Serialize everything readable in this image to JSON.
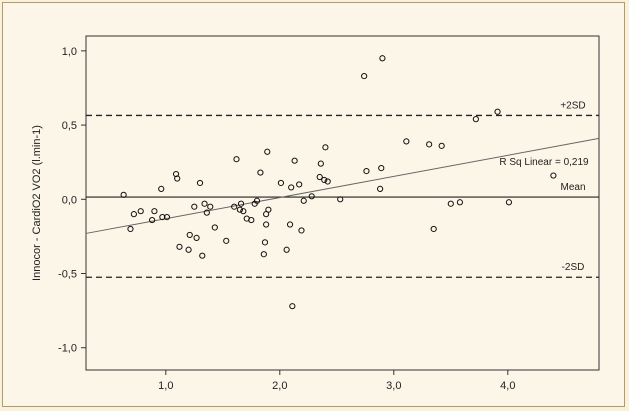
{
  "chart_data": {
    "type": "scatter",
    "title": "",
    "xlabel": "",
    "ylabel": "Innocor - CardiO2 VO2 (l.min-1)",
    "xlim": [
      0.3,
      4.8
    ],
    "ylim": [
      -1.15,
      1.1
    ],
    "x_ticks": [
      {
        "value": 1.0,
        "label": "1,0"
      },
      {
        "value": 2.0,
        "label": "2,0"
      },
      {
        "value": 3.0,
        "label": "3,0"
      },
      {
        "value": 4.0,
        "label": "4,0"
      }
    ],
    "y_ticks": [
      {
        "value": 1.0,
        "label": "1,0"
      },
      {
        "value": 0.5,
        "label": "0,5"
      },
      {
        "value": 0.0,
        "label": "0,0"
      },
      {
        "value": -0.5,
        "label": "-0,5"
      },
      {
        "value": -1.0,
        "label": "-1,0"
      }
    ],
    "reference_lines": [
      {
        "name": "+2SD",
        "value": 0.565,
        "style": "dashed"
      },
      {
        "name": "Mean",
        "value": 0.015,
        "style": "solid"
      },
      {
        "name": "-2SD",
        "value": -0.525,
        "style": "dashed"
      }
    ],
    "fit_line": {
      "label": "R Sq Linear = 0,219",
      "x": [
        0.3,
        4.8
      ],
      "y": [
        -0.23,
        0.41
      ]
    },
    "points": [
      {
        "x": 0.63,
        "y": 0.03
      },
      {
        "x": 0.69,
        "y": -0.2
      },
      {
        "x": 0.72,
        "y": -0.1
      },
      {
        "x": 0.78,
        "y": -0.08
      },
      {
        "x": 0.88,
        "y": -0.14
      },
      {
        "x": 0.9,
        "y": -0.08
      },
      {
        "x": 0.96,
        "y": 0.07
      },
      {
        "x": 0.97,
        "y": -0.12
      },
      {
        "x": 1.01,
        "y": -0.12
      },
      {
        "x": 1.09,
        "y": 0.17
      },
      {
        "x": 1.1,
        "y": 0.14
      },
      {
        "x": 1.12,
        "y": -0.32
      },
      {
        "x": 1.2,
        "y": -0.34
      },
      {
        "x": 1.21,
        "y": -0.24
      },
      {
        "x": 1.25,
        "y": -0.05
      },
      {
        "x": 1.27,
        "y": -0.26
      },
      {
        "x": 1.3,
        "y": 0.11
      },
      {
        "x": 1.32,
        "y": -0.38
      },
      {
        "x": 1.34,
        "y": -0.03
      },
      {
        "x": 1.36,
        "y": -0.09
      },
      {
        "x": 1.39,
        "y": -0.05
      },
      {
        "x": 1.43,
        "y": -0.19
      },
      {
        "x": 1.53,
        "y": -0.28
      },
      {
        "x": 1.6,
        "y": -0.05
      },
      {
        "x": 1.62,
        "y": 0.27
      },
      {
        "x": 1.65,
        "y": -0.07
      },
      {
        "x": 1.66,
        "y": -0.03
      },
      {
        "x": 1.68,
        "y": -0.08
      },
      {
        "x": 1.71,
        "y": -0.13
      },
      {
        "x": 1.75,
        "y": -0.14
      },
      {
        "x": 1.78,
        "y": -0.03
      },
      {
        "x": 1.8,
        "y": -0.01
      },
      {
        "x": 1.83,
        "y": 0.18
      },
      {
        "x": 1.86,
        "y": -0.37
      },
      {
        "x": 1.87,
        "y": -0.29
      },
      {
        "x": 1.88,
        "y": -0.17
      },
      {
        "x": 1.88,
        "y": -0.1
      },
      {
        "x": 1.89,
        "y": 0.32
      },
      {
        "x": 1.9,
        "y": -0.07
      },
      {
        "x": 2.01,
        "y": 0.11
      },
      {
        "x": 2.06,
        "y": -0.34
      },
      {
        "x": 2.09,
        "y": -0.17
      },
      {
        "x": 2.1,
        "y": 0.08
      },
      {
        "x": 2.11,
        "y": -0.72
      },
      {
        "x": 2.13,
        "y": 0.26
      },
      {
        "x": 2.17,
        "y": 0.1
      },
      {
        "x": 2.19,
        "y": -0.21
      },
      {
        "x": 2.21,
        "y": -0.01
      },
      {
        "x": 2.28,
        "y": 0.02
      },
      {
        "x": 2.35,
        "y": 0.15
      },
      {
        "x": 2.36,
        "y": 0.24
      },
      {
        "x": 2.39,
        "y": 0.13
      },
      {
        "x": 2.4,
        "y": 0.35
      },
      {
        "x": 2.42,
        "y": 0.12
      },
      {
        "x": 2.53,
        "y": 0.0
      },
      {
        "x": 2.74,
        "y": 0.83
      },
      {
        "x": 2.76,
        "y": 0.19
      },
      {
        "x": 2.88,
        "y": 0.07
      },
      {
        "x": 2.89,
        "y": 0.21
      },
      {
        "x": 2.9,
        "y": 0.95
      },
      {
        "x": 3.11,
        "y": 0.39
      },
      {
        "x": 3.31,
        "y": 0.37
      },
      {
        "x": 3.35,
        "y": -0.2
      },
      {
        "x": 3.42,
        "y": 0.36
      },
      {
        "x": 3.5,
        "y": -0.03
      },
      {
        "x": 3.58,
        "y": -0.02
      },
      {
        "x": 3.72,
        "y": 0.54
      },
      {
        "x": 3.91,
        "y": 0.59
      },
      {
        "x": 4.01,
        "y": -0.02
      },
      {
        "x": 4.4,
        "y": 0.16
      }
    ]
  }
}
